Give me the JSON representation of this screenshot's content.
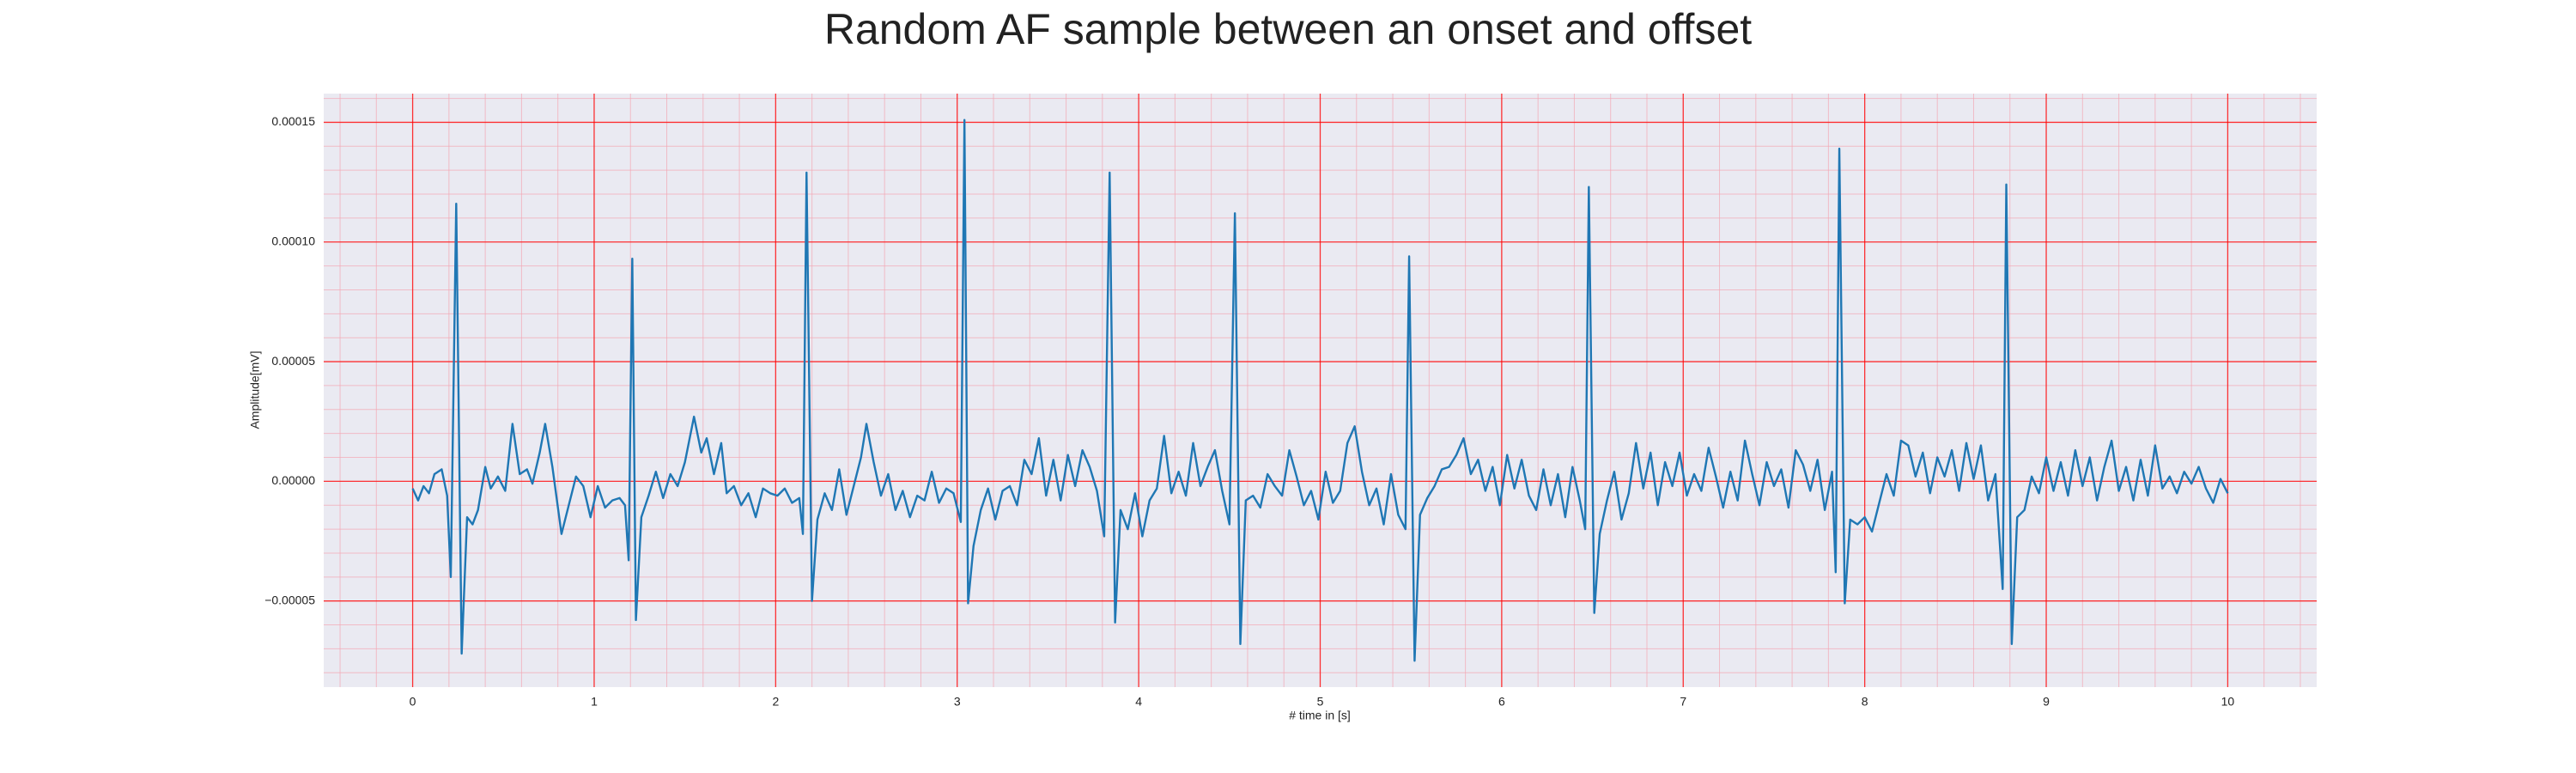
{
  "chart_data": {
    "type": "line",
    "title": "Random AF sample between an onset and offset",
    "xlabel": "# time in [s]",
    "ylabel": "Amplitude[mV]",
    "xlim": [
      -0.49,
      10.49
    ],
    "ylim": [
      -8.6e-05,
      0.000162
    ],
    "xticks": [
      0,
      1,
      2,
      3,
      4,
      5,
      6,
      7,
      8,
      9,
      10
    ],
    "yticks": [
      {
        "value": -5e-05,
        "label": "−0.00005"
      },
      {
        "value": 0,
        "label": "0.00000"
      },
      {
        "value": 5e-05,
        "label": "0.00005"
      },
      {
        "value": 0.0001,
        "label": "0.00010"
      },
      {
        "value": 0.00015,
        "label": "0.00015"
      }
    ],
    "grid": true,
    "grid_color": "#ff0000",
    "minor_grid": {
      "xstep": 0.2,
      "ystep": 1e-05,
      "color": "#f4a6b4"
    },
    "background": "#eaeaf2",
    "x": [
      0.0,
      0.03,
      0.06,
      0.09,
      0.12,
      0.16,
      0.19,
      0.21,
      0.24,
      0.27,
      0.3,
      0.33,
      0.36,
      0.4,
      0.43,
      0.47,
      0.51,
      0.55,
      0.59,
      0.63,
      0.66,
      0.7,
      0.73,
      0.77,
      0.82,
      0.86,
      0.9,
      0.94,
      0.98,
      1.02,
      1.06,
      1.1,
      1.14,
      1.17,
      1.19,
      1.21,
      1.23,
      1.26,
      1.3,
      1.34,
      1.38,
      1.42,
      1.46,
      1.5,
      1.55,
      1.59,
      1.62,
      1.66,
      1.7,
      1.73,
      1.77,
      1.81,
      1.85,
      1.89,
      1.93,
      1.97,
      2.01,
      2.05,
      2.09,
      2.13,
      2.15,
      2.17,
      2.2,
      2.23,
      2.27,
      2.31,
      2.35,
      2.39,
      2.43,
      2.47,
      2.5,
      2.54,
      2.58,
      2.62,
      2.66,
      2.7,
      2.74,
      2.78,
      2.82,
      2.86,
      2.9,
      2.94,
      2.98,
      3.02,
      3.04,
      3.06,
      3.09,
      3.13,
      3.17,
      3.21,
      3.25,
      3.29,
      3.33,
      3.37,
      3.41,
      3.45,
      3.49,
      3.53,
      3.57,
      3.61,
      3.65,
      3.69,
      3.73,
      3.77,
      3.81,
      3.84,
      3.87,
      3.9,
      3.94,
      3.98,
      4.02,
      4.06,
      4.1,
      4.14,
      4.18,
      4.22,
      4.26,
      4.3,
      4.34,
      4.38,
      4.42,
      4.46,
      4.5,
      4.53,
      4.56,
      4.59,
      4.63,
      4.67,
      4.71,
      4.75,
      4.79,
      4.83,
      4.87,
      4.91,
      4.95,
      4.99,
      5.03,
      5.07,
      5.11,
      5.15,
      5.19,
      5.23,
      5.27,
      5.31,
      5.35,
      5.39,
      5.43,
      5.47,
      5.49,
      5.52,
      5.55,
      5.59,
      5.63,
      5.67,
      5.71,
      5.75,
      5.79,
      5.83,
      5.87,
      5.91,
      5.95,
      5.99,
      6.03,
      6.07,
      6.11,
      6.15,
      6.19,
      6.23,
      6.27,
      6.31,
      6.35,
      6.39,
      6.43,
      6.46,
      6.48,
      6.51,
      6.54,
      6.58,
      6.62,
      6.66,
      6.7,
      6.74,
      6.78,
      6.82,
      6.86,
      6.9,
      6.94,
      6.98,
      7.02,
      7.06,
      7.1,
      7.14,
      7.18,
      7.22,
      7.26,
      7.3,
      7.34,
      7.38,
      7.42,
      7.46,
      7.5,
      7.54,
      7.58,
      7.62,
      7.66,
      7.7,
      7.74,
      7.78,
      7.82,
      7.84,
      7.86,
      7.89,
      7.92,
      7.96,
      8.0,
      8.04,
      8.08,
      8.12,
      8.16,
      8.2,
      8.24,
      8.28,
      8.32,
      8.36,
      8.4,
      8.44,
      8.48,
      8.52,
      8.56,
      8.6,
      8.64,
      8.68,
      8.72,
      8.76,
      8.78,
      8.81,
      8.84,
      8.88,
      8.92,
      8.96,
      9.0,
      9.04,
      9.08,
      9.12,
      9.16,
      9.2,
      9.24,
      9.28,
      9.32,
      9.36,
      9.4,
      9.44,
      9.48,
      9.52,
      9.56,
      9.6,
      9.64,
      9.68,
      9.72,
      9.76,
      9.8,
      9.84,
      9.88,
      9.92,
      9.96,
      10.0
    ],
    "series": [
      {
        "color": "#1f77b4",
        "values": [
          -3e-06,
          -8e-06,
          -2e-06,
          -5e-06,
          3e-06,
          5e-06,
          -6e-06,
          -4e-05,
          0.000116,
          -7.2e-05,
          -1.5e-05,
          -1.8e-05,
          -1.2e-05,
          6e-06,
          -3e-06,
          2e-06,
          -4e-06,
          2.4e-05,
          3e-06,
          5e-06,
          -1e-06,
          1.2e-05,
          2.4e-05,
          6e-06,
          -2.2e-05,
          -1e-05,
          2e-06,
          -2e-06,
          -1.5e-05,
          -2e-06,
          -1.1e-05,
          -8e-06,
          -7e-06,
          -1e-05,
          -3.3e-05,
          9.3e-05,
          -5.8e-05,
          -1.5e-05,
          -6e-06,
          4e-06,
          -7e-06,
          3e-06,
          -2e-06,
          8e-06,
          2.7e-05,
          1.2e-05,
          1.8e-05,
          3e-06,
          1.6e-05,
          -5e-06,
          -2e-06,
          -1e-05,
          -5e-06,
          -1.5e-05,
          -3e-06,
          -5e-06,
          -6e-06,
          -3e-06,
          -9e-06,
          -7e-06,
          -2.2e-05,
          0.000129,
          -5e-05,
          -1.6e-05,
          -5e-06,
          -1.2e-05,
          5e-06,
          -1.4e-05,
          -2e-06,
          1e-05,
          2.4e-05,
          8e-06,
          -6e-06,
          3e-06,
          -1.2e-05,
          -4e-06,
          -1.5e-05,
          -6e-06,
          -8e-06,
          4e-06,
          -9e-06,
          -3e-06,
          -5e-06,
          -1.7e-05,
          0.000151,
          -5.1e-05,
          -2.7e-05,
          -1.2e-05,
          -3e-06,
          -1.6e-05,
          -4e-06,
          -2e-06,
          -1e-05,
          9e-06,
          3e-06,
          1.8e-05,
          -6e-06,
          9e-06,
          -8e-06,
          1.1e-05,
          -2e-06,
          1.3e-05,
          6e-06,
          -4e-06,
          -2.3e-05,
          0.000129,
          -5.9e-05,
          -1.2e-05,
          -2e-05,
          -5e-06,
          -2.3e-05,
          -8e-06,
          -3e-06,
          1.9e-05,
          -5e-06,
          4e-06,
          -6e-06,
          1.6e-05,
          -2e-06,
          6e-06,
          1.3e-05,
          -4e-06,
          -1.8e-05,
          0.000112,
          -6.8e-05,
          -8e-06,
          -6e-06,
          -1.1e-05,
          3e-06,
          -2e-06,
          -6e-06,
          1.3e-05,
          2e-06,
          -1e-05,
          -4e-06,
          -1.6e-05,
          4e-06,
          -9e-06,
          -4e-06,
          1.6e-05,
          2.3e-05,
          4e-06,
          -1e-05,
          -3e-06,
          -1.8e-05,
          3e-06,
          -1.4e-05,
          -2e-05,
          9.4e-05,
          -7.5e-05,
          -1.4e-05,
          -7e-06,
          -2e-06,
          5e-06,
          6e-06,
          1.1e-05,
          1.8e-05,
          3e-06,
          9e-06,
          -4e-06,
          6e-06,
          -1e-05,
          1.1e-05,
          -3e-06,
          9e-06,
          -6e-06,
          -1.2e-05,
          5e-06,
          -1e-05,
          3e-06,
          -1.5e-05,
          6e-06,
          -8e-06,
          -2e-05,
          0.000123,
          -5.5e-05,
          -2.2e-05,
          -8e-06,
          4e-06,
          -1.6e-05,
          -5e-06,
          1.6e-05,
          -3e-06,
          1.2e-05,
          -1e-05,
          8e-06,
          -2e-06,
          1.2e-05,
          -6e-06,
          3e-06,
          -4e-06,
          1.4e-05,
          2e-06,
          -1.1e-05,
          4e-06,
          -8e-06,
          1.7e-05,
          3e-06,
          -1e-05,
          8e-06,
          -2e-06,
          5e-06,
          -1.1e-05,
          1.3e-05,
          7e-06,
          -4e-06,
          9e-06,
          -1.2e-05,
          4e-06,
          -3.8e-05,
          0.000139,
          -5.1e-05,
          -1.6e-05,
          -1.8e-05,
          -1.5e-05,
          -2.1e-05,
          -9e-06,
          3e-06,
          -6e-06,
          1.7e-05,
          1.5e-05,
          2e-06,
          1.2e-05,
          -5e-06,
          1e-05,
          2e-06,
          1.3e-05,
          -4e-06,
          1.6e-05,
          1e-06,
          1.5e-05,
          -8e-06,
          3e-06,
          -4.5e-05,
          0.000124,
          -6.8e-05,
          -1.5e-05,
          -1.2e-05,
          2e-06,
          -5e-06,
          1e-05,
          -4e-06,
          8e-06,
          -6e-06,
          1.3e-05,
          -2e-06,
          1e-05,
          -8e-06,
          6e-06,
          1.7e-05,
          -4e-06,
          6e-06,
          -8e-06,
          9e-06,
          -6e-06,
          1.5e-05,
          -3e-06,
          2e-06,
          -5e-06,
          4e-06,
          -1e-06,
          6e-06,
          -3e-06,
          -9e-06,
          1e-06,
          -5e-06
        ]
      }
    ]
  }
}
